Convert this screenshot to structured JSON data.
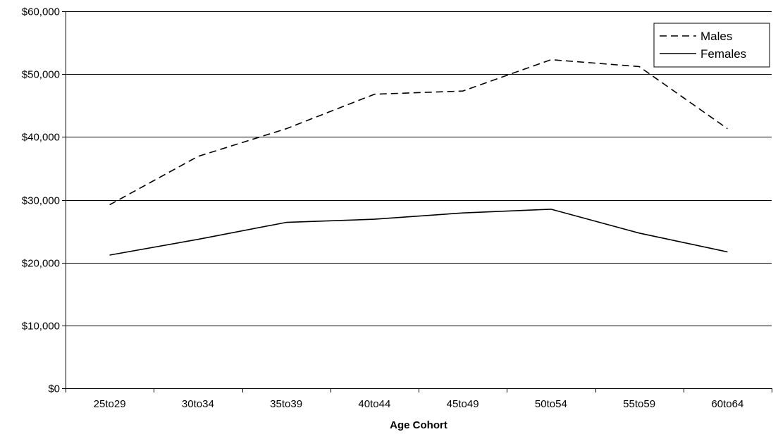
{
  "chart_data": {
    "type": "line",
    "title": "",
    "xlabel": "Age Cohort",
    "ylabel": "",
    "categories": [
      "25to29",
      "30to34",
      "35to39",
      "40to44",
      "45to49",
      "50to54",
      "55to59",
      "60to64"
    ],
    "series": [
      {
        "name": "Males",
        "values": [
          29200,
          36900,
          41300,
          46800,
          47300,
          52300,
          51200,
          41300
        ],
        "line_style": "dashed",
        "color": "#000000"
      },
      {
        "name": "Females",
        "values": [
          21200,
          23700,
          26400,
          26900,
          27900,
          28500,
          24700,
          21700
        ],
        "line_style": "solid",
        "color": "#000000"
      }
    ],
    "ylim": [
      0,
      60000
    ],
    "y_ticks": [
      0,
      10000,
      20000,
      30000,
      40000,
      50000,
      60000
    ],
    "y_tick_labels": [
      "$0",
      "$10,000",
      "$20,000",
      "$30,000",
      "$40,000",
      "$50,000",
      "$60,000"
    ],
    "grid": "horizontal",
    "legend_position": "top-right"
  }
}
